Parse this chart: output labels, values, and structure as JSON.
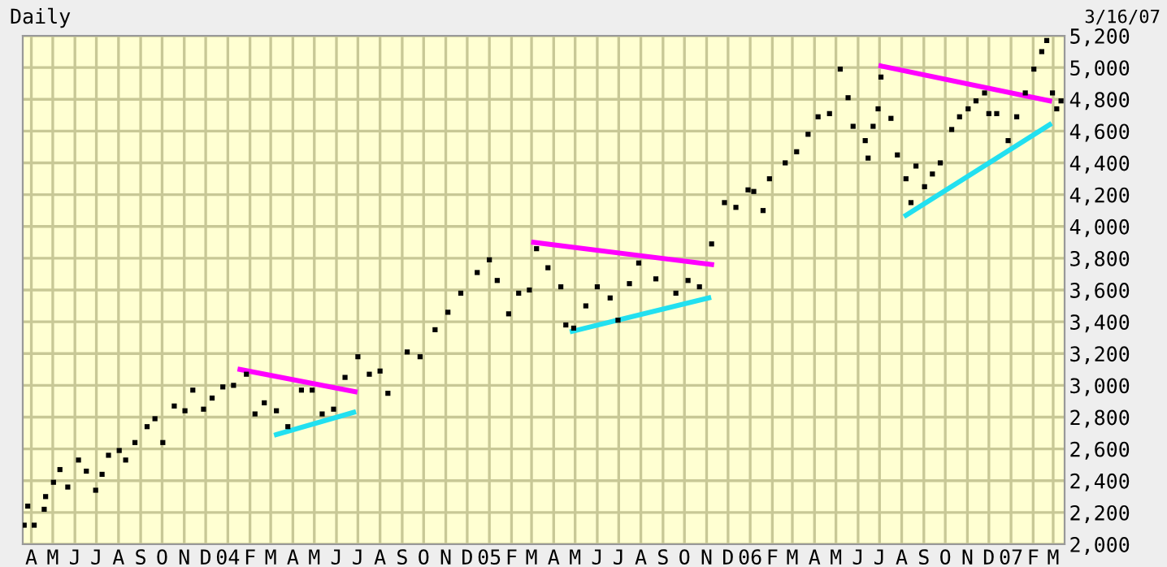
{
  "chart_data": {
    "type": "scatter",
    "title": "Daily",
    "annotations": [
      "3/16/07"
    ],
    "grid": true,
    "legend": false,
    "xlim": [
      "2003-03-20",
      "2007-03-17"
    ],
    "xticks": [
      {
        "value": "2003-04-01",
        "label": "A"
      },
      {
        "value": "2003-05-01",
        "label": "M"
      },
      {
        "value": "2003-06-01",
        "label": "J"
      },
      {
        "value": "2003-07-01",
        "label": "J"
      },
      {
        "value": "2003-08-01",
        "label": "A"
      },
      {
        "value": "2003-09-01",
        "label": "S"
      },
      {
        "value": "2003-10-01",
        "label": "O"
      },
      {
        "value": "2003-11-01",
        "label": "N"
      },
      {
        "value": "2003-12-01",
        "label": "D"
      },
      {
        "value": "2004-01-01",
        "label": "04"
      },
      {
        "value": "2004-02-01",
        "label": "F"
      },
      {
        "value": "2004-03-01",
        "label": "M"
      },
      {
        "value": "2004-04-01",
        "label": "A"
      },
      {
        "value": "2004-05-01",
        "label": "M"
      },
      {
        "value": "2004-06-01",
        "label": "J"
      },
      {
        "value": "2004-07-01",
        "label": "J"
      },
      {
        "value": "2004-08-01",
        "label": "A"
      },
      {
        "value": "2004-09-01",
        "label": "S"
      },
      {
        "value": "2004-10-01",
        "label": "O"
      },
      {
        "value": "2004-11-01",
        "label": "N"
      },
      {
        "value": "2004-12-01",
        "label": "D"
      },
      {
        "value": "2005-01-01",
        "label": "05"
      },
      {
        "value": "2005-02-01",
        "label": "F"
      },
      {
        "value": "2005-03-01",
        "label": "M"
      },
      {
        "value": "2005-04-01",
        "label": "A"
      },
      {
        "value": "2005-05-01",
        "label": "M"
      },
      {
        "value": "2005-06-01",
        "label": "J"
      },
      {
        "value": "2005-07-01",
        "label": "J"
      },
      {
        "value": "2005-08-01",
        "label": "A"
      },
      {
        "value": "2005-09-01",
        "label": "S"
      },
      {
        "value": "2005-10-01",
        "label": "O"
      },
      {
        "value": "2005-11-01",
        "label": "N"
      },
      {
        "value": "2005-12-01",
        "label": "D"
      },
      {
        "value": "2006-01-01",
        "label": "06"
      },
      {
        "value": "2006-02-01",
        "label": "F"
      },
      {
        "value": "2006-03-01",
        "label": "M"
      },
      {
        "value": "2006-04-01",
        "label": "A"
      },
      {
        "value": "2006-05-01",
        "label": "M"
      },
      {
        "value": "2006-06-01",
        "label": "J"
      },
      {
        "value": "2006-07-01",
        "label": "J"
      },
      {
        "value": "2006-08-01",
        "label": "A"
      },
      {
        "value": "2006-09-01",
        "label": "S"
      },
      {
        "value": "2006-10-01",
        "label": "O"
      },
      {
        "value": "2006-11-01",
        "label": "N"
      },
      {
        "value": "2006-12-01",
        "label": "D"
      },
      {
        "value": "2007-01-01",
        "label": "07"
      },
      {
        "value": "2007-02-01",
        "label": "F"
      },
      {
        "value": "2007-03-01",
        "label": "M"
      }
    ],
    "ylim": [
      2000,
      5200
    ],
    "yticks": [
      {
        "value": 2000,
        "label": "2,000"
      },
      {
        "value": 2200,
        "label": "2,200"
      },
      {
        "value": 2400,
        "label": "2,400"
      },
      {
        "value": 2600,
        "label": "2,600"
      },
      {
        "value": 2800,
        "label": "2,800"
      },
      {
        "value": 3000,
        "label": "3,000"
      },
      {
        "value": 3200,
        "label": "3,200"
      },
      {
        "value": 3400,
        "label": "3,400"
      },
      {
        "value": 3600,
        "label": "3,600"
      },
      {
        "value": 3800,
        "label": "3,800"
      },
      {
        "value": 4000,
        "label": "4,000"
      },
      {
        "value": 4200,
        "label": "4,200"
      },
      {
        "value": 4400,
        "label": "4,400"
      },
      {
        "value": 4600,
        "label": "4,600"
      },
      {
        "value": 4800,
        "label": "4,800"
      },
      {
        "value": 5000,
        "label": "5,000"
      },
      {
        "value": 5200,
        "label": "5,200"
      }
    ],
    "series": [
      {
        "marker": "square",
        "color": "#000000",
        "x": [
          "2003-03-22",
          "2003-03-27",
          "2003-04-05",
          "2003-04-19",
          "2003-04-21",
          "2003-05-02",
          "2003-05-11",
          "2003-05-22",
          "2003-06-06",
          "2003-06-17",
          "2003-06-30",
          "2003-07-09",
          "2003-07-18",
          "2003-08-02",
          "2003-08-11",
          "2003-08-24",
          "2003-09-10",
          "2003-09-21",
          "2003-10-02",
          "2003-10-18",
          "2003-11-02",
          "2003-11-13",
          "2003-11-28",
          "2003-12-10",
          "2003-12-25",
          "2004-01-09",
          "2004-01-27",
          "2004-02-08",
          "2004-02-21",
          "2004-03-09",
          "2004-03-25",
          "2004-04-13",
          "2004-04-28",
          "2004-05-12",
          "2004-05-28",
          "2004-06-13",
          "2004-07-01",
          "2004-07-17",
          "2004-08-01",
          "2004-08-12",
          "2004-09-08",
          "2004-09-26",
          "2004-10-17",
          "2004-11-04",
          "2004-11-22",
          "2004-12-15",
          "2005-01-01",
          "2005-01-12",
          "2005-01-28",
          "2005-02-11",
          "2005-02-26",
          "2005-03-08",
          "2005-03-24",
          "2005-04-11",
          "2005-04-18",
          "2005-04-29",
          "2005-05-16",
          "2005-06-01",
          "2005-06-19",
          "2005-06-30",
          "2005-07-16",
          "2005-07-29",
          "2005-08-22",
          "2005-09-19",
          "2005-10-06",
          "2005-10-22",
          "2005-11-08",
          "2005-11-26",
          "2005-12-12",
          "2005-12-29",
          "2006-01-06",
          "2006-01-19",
          "2006-01-28",
          "2006-02-19",
          "2006-03-07",
          "2006-03-23",
          "2006-04-06",
          "2006-04-22",
          "2006-05-07",
          "2006-05-18",
          "2006-05-25",
          "2006-06-11",
          "2006-06-15",
          "2006-06-22",
          "2006-06-29",
          "2006-07-03",
          "2006-07-17",
          "2006-07-26",
          "2006-08-07",
          "2006-08-14",
          "2006-08-21",
          "2006-09-02",
          "2006-09-13",
          "2006-09-24",
          "2006-10-10",
          "2006-10-21",
          "2006-11-02",
          "2006-11-13",
          "2006-11-25",
          "2006-12-01",
          "2006-12-12",
          "2006-12-28",
          "2007-01-09",
          "2007-01-21",
          "2007-02-02",
          "2007-02-13",
          "2007-02-20",
          "2007-02-28",
          "2007-03-06",
          "2007-03-12"
        ],
        "values": [
          2120,
          2240,
          2120,
          2220,
          2300,
          2390,
          2470,
          2360,
          2530,
          2460,
          2340,
          2440,
          2560,
          2590,
          2530,
          2640,
          2740,
          2790,
          2640,
          2870,
          2840,
          2970,
          2850,
          2920,
          2990,
          3000,
          3070,
          2820,
          2890,
          2840,
          2740,
          2970,
          2970,
          2820,
          2850,
          3050,
          3180,
          3070,
          3090,
          2950,
          3210,
          3180,
          3350,
          3460,
          3580,
          3710,
          3790,
          3660,
          3450,
          3580,
          3600,
          3860,
          3740,
          3620,
          3380,
          3360,
          3500,
          3620,
          3550,
          3410,
          3640,
          3770,
          3670,
          3580,
          3660,
          3620,
          3890,
          4150,
          4120,
          4230,
          4220,
          4100,
          4300,
          4400,
          4470,
          4580,
          4690,
          4710,
          4990,
          4810,
          4630,
          4540,
          4430,
          4630,
          4740,
          4940,
          4680,
          4450,
          4300,
          4150,
          4380,
          4250,
          4330,
          4400,
          4610,
          4690,
          4740,
          4790,
          4840,
          4710,
          4710,
          4540,
          4690,
          4840,
          4990,
          5100,
          5170,
          4840,
          4740,
          4790
        ]
      },
      {
        "type": "line",
        "color": "#ff00ff",
        "x": [
          "2004-01-18",
          "2004-06-27"
        ],
        "values": [
          3100,
          2960
        ]
      },
      {
        "type": "line",
        "color": "#22e0f0",
        "x": [
          "2004-03-09",
          "2004-06-25"
        ],
        "values": [
          2690,
          2830
        ]
      },
      {
        "type": "line",
        "color": "#ff00ff",
        "x": [
          "2005-03-04",
          "2005-11-08"
        ],
        "values": [
          3900,
          3760
        ]
      },
      {
        "type": "line",
        "color": "#22e0f0",
        "x": [
          "2005-04-27",
          "2005-11-04"
        ],
        "values": [
          3340,
          3550
        ]
      },
      {
        "type": "line",
        "color": "#ff00ff",
        "x": [
          "2006-07-03",
          "2007-02-24"
        ],
        "values": [
          5010,
          4790
        ]
      },
      {
        "type": "line",
        "color": "#22e0f0",
        "x": [
          "2006-08-07",
          "2007-02-24"
        ],
        "values": [
          4070,
          4640
        ]
      }
    ]
  }
}
